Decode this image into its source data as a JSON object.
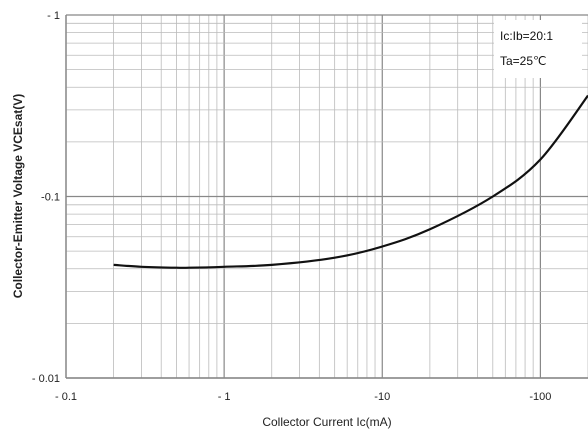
{
  "chart_data": {
    "type": "line",
    "x_scale": "log",
    "y_scale": "log",
    "xlim": [
      -0.1,
      -200
    ],
    "ylim": [
      -0.01,
      -1
    ],
    "xlabel": "Collector Current   Ic(mA)",
    "ylabel": "Collector-Emitter Voltage    VCEsat(V)",
    "x_tick_labels": [
      "- 0.1",
      "- 1",
      "-10",
      "-100"
    ],
    "y_tick_labels": [
      "- 1",
      "-0.1",
      "- 0.01"
    ],
    "grid": true,
    "annotations": [
      "Ic:Ib=20:1",
      "Ta=25℃"
    ],
    "series": [
      {
        "x": [
          -0.2,
          -0.3,
          -0.5,
          -0.6,
          -1,
          -2,
          -5,
          -10,
          -20,
          -50,
          -100,
          -200
        ],
        "y": [
          -0.042,
          -0.041,
          -0.0405,
          -0.0405,
          -0.041,
          -0.042,
          -0.046,
          -0.053,
          -0.066,
          -0.1,
          -0.16,
          -0.36
        ]
      }
    ]
  }
}
